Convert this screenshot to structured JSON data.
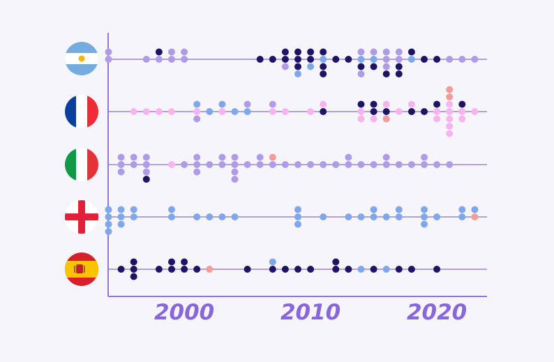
{
  "chart_data": {
    "type": "scatter",
    "title": "",
    "xlabel": "",
    "ylabel": "",
    "xlim": [
      1994,
      2024
    ],
    "xticks": [
      {
        "value": 2000,
        "label": "2000"
      },
      {
        "value": 2010,
        "label": "2010"
      },
      {
        "value": 2020,
        "label": "2020"
      }
    ],
    "grid": false,
    "legend": "none",
    "colors": {
      "background": "#f7f5fc",
      "axis": "#8f78d2",
      "row_line": "#9a84d6",
      "tick_text": "#8a66dd",
      "dark": "#1e1466",
      "lavender": "#b09ce6",
      "blue": "#7fa7ec",
      "pink": "#f7b4ef",
      "salmon": "#f59c9a"
    },
    "rows": [
      {
        "flag_icon": "argentina-flag-icon",
        "columns": [
          {
            "x": 1994,
            "above": [
              "lavender"
            ],
            "below": [
              "lavender"
            ]
          },
          {
            "x": 1997,
            "above": [],
            "below": [
              "lavender"
            ]
          },
          {
            "x": 1998,
            "above": [
              "dark"
            ],
            "below": [
              "lavender"
            ]
          },
          {
            "x": 1999,
            "above": [
              "lavender"
            ],
            "below": [
              "lavender"
            ]
          },
          {
            "x": 2000,
            "above": [
              "lavender"
            ],
            "below": [
              "lavender"
            ]
          },
          {
            "x": 2006,
            "above": [],
            "below": [
              "dark"
            ]
          },
          {
            "x": 2007,
            "above": [],
            "below": [
              "dark"
            ]
          },
          {
            "x": 2008,
            "above": [
              "dark"
            ],
            "below": [
              "dark",
              "lavender"
            ]
          },
          {
            "x": 2009,
            "above": [
              "dark"
            ],
            "below": [
              "dark",
              "dark",
              "blue"
            ]
          },
          {
            "x": 2010,
            "above": [
              "dark"
            ],
            "below": [
              "dark",
              "blue"
            ]
          },
          {
            "x": 2011,
            "above": [
              "dark"
            ],
            "below": [
              "blue",
              "dark",
              "dark"
            ]
          },
          {
            "x": 2012,
            "above": [],
            "below": [
              "dark"
            ]
          },
          {
            "x": 2013,
            "above": [],
            "below": [
              "dark"
            ]
          },
          {
            "x": 2014,
            "above": [
              "lavender"
            ],
            "below": [
              "blue",
              "dark",
              "lavender"
            ]
          },
          {
            "x": 2015,
            "above": [
              "lavender"
            ],
            "below": [
              "blue",
              "dark"
            ]
          },
          {
            "x": 2016,
            "above": [
              "lavender"
            ],
            "below": [
              "lavender",
              "lavender",
              "dark"
            ]
          },
          {
            "x": 2017,
            "above": [
              "lavender"
            ],
            "below": [
              "lavender",
              "dark",
              "dark"
            ]
          },
          {
            "x": 2018,
            "above": [
              "dark"
            ],
            "below": [
              "blue"
            ]
          },
          {
            "x": 2019,
            "above": [],
            "below": [
              "dark"
            ]
          },
          {
            "x": 2020,
            "above": [],
            "below": [
              "dark"
            ]
          },
          {
            "x": 2021,
            "above": [],
            "below": [
              "lavender"
            ]
          },
          {
            "x": 2022,
            "above": [],
            "below": [
              "lavender"
            ]
          },
          {
            "x": 2023,
            "above": [],
            "below": [
              "lavender"
            ]
          }
        ]
      },
      {
        "flag_icon": "france-flag-icon",
        "columns": [
          {
            "x": 1996,
            "above": [],
            "below": [
              "pink"
            ]
          },
          {
            "x": 1997,
            "above": [],
            "below": [
              "pink"
            ]
          },
          {
            "x": 1998,
            "above": [],
            "below": [
              "pink"
            ]
          },
          {
            "x": 1999,
            "above": [],
            "below": [
              "pink"
            ]
          },
          {
            "x": 2001,
            "above": [
              "blue"
            ],
            "below": [
              "pink",
              "lavender"
            ]
          },
          {
            "x": 2002,
            "above": [],
            "below": [
              "blue"
            ]
          },
          {
            "x": 2003,
            "above": [
              "blue"
            ],
            "below": [
              "pink"
            ]
          },
          {
            "x": 2004,
            "above": [],
            "below": [
              "blue"
            ]
          },
          {
            "x": 2005,
            "above": [
              "lavender"
            ],
            "below": [
              "blue"
            ]
          },
          {
            "x": 2007,
            "above": [
              "lavender"
            ],
            "below": [
              "pink"
            ]
          },
          {
            "x": 2008,
            "above": [],
            "below": [
              "pink"
            ]
          },
          {
            "x": 2010,
            "above": [],
            "below": [
              "pink"
            ]
          },
          {
            "x": 2011,
            "above": [
              "pink"
            ],
            "below": [
              "dark"
            ]
          },
          {
            "x": 2014,
            "above": [
              "dark"
            ],
            "below": [
              "pink",
              "pink"
            ]
          },
          {
            "x": 2015,
            "above": [
              "dark"
            ],
            "below": [
              "dark",
              "pink"
            ]
          },
          {
            "x": 2016,
            "above": [
              "pink"
            ],
            "below": [
              "dark",
              "salmon"
            ]
          },
          {
            "x": 2017,
            "above": [],
            "below": [
              "pink"
            ]
          },
          {
            "x": 2018,
            "above": [
              "pink"
            ],
            "below": [
              "dark"
            ]
          },
          {
            "x": 2019,
            "above": [],
            "below": [
              "dark"
            ]
          },
          {
            "x": 2020,
            "above": [
              "dark"
            ],
            "below": [
              "pink",
              "pink"
            ]
          },
          {
            "x": 2021,
            "above": [
              "pink",
              "salmon",
              "salmon"
            ],
            "below": [
              "pink",
              "pink",
              "pink",
              "pink"
            ]
          },
          {
            "x": 2022,
            "above": [
              "dark"
            ],
            "below": [
              "pink",
              "pink"
            ]
          },
          {
            "x": 2023,
            "above": [],
            "below": [
              "pink"
            ]
          }
        ]
      },
      {
        "flag_icon": "italy-flag-icon",
        "columns": [
          {
            "x": 1995,
            "above": [
              "lavender"
            ],
            "below": [
              "lavender",
              "lavender"
            ]
          },
          {
            "x": 1996,
            "above": [
              "lavender"
            ],
            "below": [
              "lavender"
            ]
          },
          {
            "x": 1997,
            "above": [
              "lavender"
            ],
            "below": [
              "lavender",
              "lavender",
              "dark"
            ]
          },
          {
            "x": 1999,
            "above": [],
            "below": [
              "pink"
            ]
          },
          {
            "x": 2000,
            "above": [],
            "below": [
              "lavender"
            ]
          },
          {
            "x": 2001,
            "above": [
              "lavender"
            ],
            "below": [
              "lavender",
              "lavender"
            ]
          },
          {
            "x": 2002,
            "above": [],
            "below": [
              "lavender"
            ]
          },
          {
            "x": 2003,
            "above": [
              "lavender"
            ],
            "below": [
              "lavender"
            ]
          },
          {
            "x": 2004,
            "above": [
              "lavender"
            ],
            "below": [
              "lavender",
              "lavender",
              "lavender"
            ]
          },
          {
            "x": 2005,
            "above": [],
            "below": [
              "lavender"
            ]
          },
          {
            "x": 2006,
            "above": [
              "lavender"
            ],
            "below": [
              "lavender"
            ]
          },
          {
            "x": 2007,
            "above": [
              "salmon"
            ],
            "below": [
              "lavender"
            ]
          },
          {
            "x": 2008,
            "above": [],
            "below": [
              "lavender"
            ]
          },
          {
            "x": 2009,
            "above": [],
            "below": [
              "lavender"
            ]
          },
          {
            "x": 2010,
            "above": [],
            "below": [
              "lavender"
            ]
          },
          {
            "x": 2011,
            "above": [],
            "below": [
              "lavender"
            ]
          },
          {
            "x": 2012,
            "above": [],
            "below": [
              "lavender"
            ]
          },
          {
            "x": 2013,
            "above": [
              "lavender"
            ],
            "below": [
              "lavender"
            ]
          },
          {
            "x": 2014,
            "above": [],
            "below": [
              "lavender"
            ]
          },
          {
            "x": 2015,
            "above": [],
            "below": [
              "lavender"
            ]
          },
          {
            "x": 2016,
            "above": [
              "lavender"
            ],
            "below": [
              "lavender"
            ]
          },
          {
            "x": 2017,
            "above": [],
            "below": [
              "lavender"
            ]
          },
          {
            "x": 2018,
            "above": [],
            "below": [
              "lavender"
            ]
          },
          {
            "x": 2019,
            "above": [
              "lavender"
            ],
            "below": [
              "lavender"
            ]
          },
          {
            "x": 2020,
            "above": [],
            "below": [
              "lavender"
            ]
          },
          {
            "x": 2021,
            "above": [],
            "below": [
              "lavender"
            ]
          }
        ]
      },
      {
        "flag_icon": "england-flag-icon",
        "columns": [
          {
            "x": 1994,
            "above": [
              "blue"
            ],
            "below": [
              "blue",
              "blue",
              "blue"
            ]
          },
          {
            "x": 1995,
            "above": [
              "blue"
            ],
            "below": [
              "blue",
              "blue"
            ]
          },
          {
            "x": 1996,
            "above": [
              "blue"
            ],
            "below": [
              "blue"
            ]
          },
          {
            "x": 1999,
            "above": [
              "blue"
            ],
            "below": [
              "blue"
            ]
          },
          {
            "x": 2001,
            "above": [],
            "below": [
              "blue"
            ]
          },
          {
            "x": 2002,
            "above": [],
            "below": [
              "blue"
            ]
          },
          {
            "x": 2003,
            "above": [],
            "below": [
              "blue"
            ]
          },
          {
            "x": 2004,
            "above": [],
            "below": [
              "blue"
            ]
          },
          {
            "x": 2009,
            "above": [
              "blue"
            ],
            "below": [
              "blue",
              "blue"
            ]
          },
          {
            "x": 2011,
            "above": [],
            "below": [
              "blue"
            ]
          },
          {
            "x": 2013,
            "above": [],
            "below": [
              "blue"
            ]
          },
          {
            "x": 2014,
            "above": [],
            "below": [
              "blue"
            ]
          },
          {
            "x": 2015,
            "above": [
              "blue"
            ],
            "below": [
              "blue"
            ]
          },
          {
            "x": 2016,
            "above": [],
            "below": [
              "blue"
            ]
          },
          {
            "x": 2017,
            "above": [
              "blue"
            ],
            "below": [
              "blue"
            ]
          },
          {
            "x": 2019,
            "above": [
              "blue"
            ],
            "below": [
              "blue",
              "blue"
            ]
          },
          {
            "x": 2020,
            "above": [],
            "below": [
              "blue"
            ]
          },
          {
            "x": 2022,
            "above": [
              "blue"
            ],
            "below": [
              "blue"
            ]
          },
          {
            "x": 2023,
            "above": [
              "blue"
            ],
            "below": [
              "salmon"
            ]
          }
        ]
      },
      {
        "flag_icon": "spain-flag-icon",
        "columns": [
          {
            "x": 1995,
            "above": [],
            "below": [
              "dark"
            ]
          },
          {
            "x": 1996,
            "above": [
              "dark"
            ],
            "below": [
              "dark",
              "dark"
            ]
          },
          {
            "x": 1998,
            "above": [],
            "below": [
              "dark"
            ]
          },
          {
            "x": 1999,
            "above": [
              "dark"
            ],
            "below": [
              "dark"
            ]
          },
          {
            "x": 2000,
            "above": [
              "dark"
            ],
            "below": [
              "dark"
            ]
          },
          {
            "x": 2001,
            "above": [],
            "below": [
              "dark"
            ]
          },
          {
            "x": 2002,
            "above": [],
            "below": [
              "salmon"
            ]
          },
          {
            "x": 2005,
            "above": [],
            "below": [
              "dark"
            ]
          },
          {
            "x": 2007,
            "above": [
              "blue"
            ],
            "below": [
              "dark"
            ]
          },
          {
            "x": 2008,
            "above": [],
            "below": [
              "dark"
            ]
          },
          {
            "x": 2009,
            "above": [],
            "below": [
              "dark"
            ]
          },
          {
            "x": 2010,
            "above": [],
            "below": [
              "dark"
            ]
          },
          {
            "x": 2012,
            "above": [
              "dark"
            ],
            "below": [
              "dark"
            ]
          },
          {
            "x": 2013,
            "above": [],
            "below": [
              "dark"
            ]
          },
          {
            "x": 2014,
            "above": [],
            "below": [
              "blue"
            ]
          },
          {
            "x": 2015,
            "above": [],
            "below": [
              "dark"
            ]
          },
          {
            "x": 2016,
            "above": [],
            "below": [
              "blue"
            ]
          },
          {
            "x": 2017,
            "above": [],
            "below": [
              "dark"
            ]
          },
          {
            "x": 2018,
            "above": [],
            "below": [
              "dark"
            ]
          },
          {
            "x": 2020,
            "above": [],
            "below": [
              "dark"
            ]
          }
        ]
      }
    ]
  }
}
